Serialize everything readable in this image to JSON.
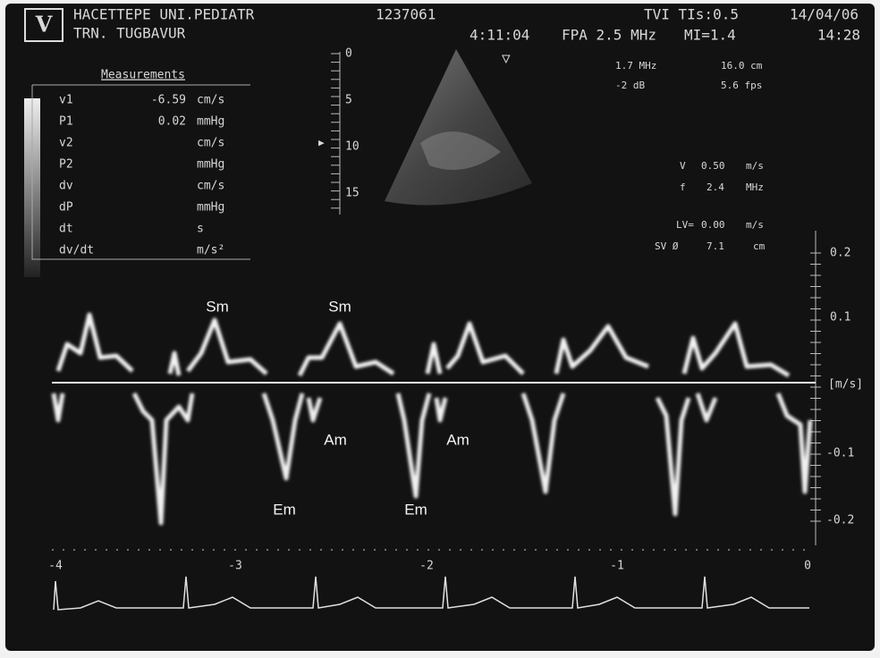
{
  "header": {
    "logo": "V",
    "institution": "HACETTEPE UNI.PEDIATR",
    "patient": "TRN. TUGBAVUR",
    "id": "1237061",
    "tvi": "TVI TIs:0.5",
    "date": "14/04/06",
    "elapsed": "4:11:04",
    "frequency": "FPA 2.5 MHz",
    "mi": "MI=1.4",
    "time": "14:28"
  },
  "measurements": {
    "title": "Measurements",
    "rows": [
      {
        "label": "v1",
        "value": "-6.59",
        "unit": "cm/s"
      },
      {
        "label": "P1",
        "value": "0.02",
        "unit": "mmHg"
      },
      {
        "label": "v2",
        "unit": "cm/s"
      },
      {
        "label": "P2",
        "unit": "mmHg"
      },
      {
        "label": "dv",
        "unit": "cm/s"
      },
      {
        "label": "dP",
        "unit": "mmHg"
      },
      {
        "label": "dt",
        "unit": "s"
      },
      {
        "label": "dv/dt",
        "unit": "m/s²"
      }
    ]
  },
  "depth_scale": [
    "0",
    "5",
    "10",
    "15"
  ],
  "params": [
    "1.7 MHz",
    "16.0 cm",
    "-2 dB",
    "5.6 fps",
    "V",
    "0.50",
    "m/s",
    "f",
    "2.4",
    "MHz",
    "LV=",
    "0.00",
    "m/s",
    "SV Ø",
    "7.1",
    "cm"
  ],
  "velocity_scale": [
    "0.2",
    "0.1",
    "[m/s]",
    "-0.1",
    "-0.2"
  ],
  "annotations": [
    "Sm",
    "Sm",
    "Am",
    "Am",
    "Em",
    "Em"
  ],
  "time_scale": [
    "-4",
    "-3",
    "-2",
    "-1",
    "0"
  ]
}
